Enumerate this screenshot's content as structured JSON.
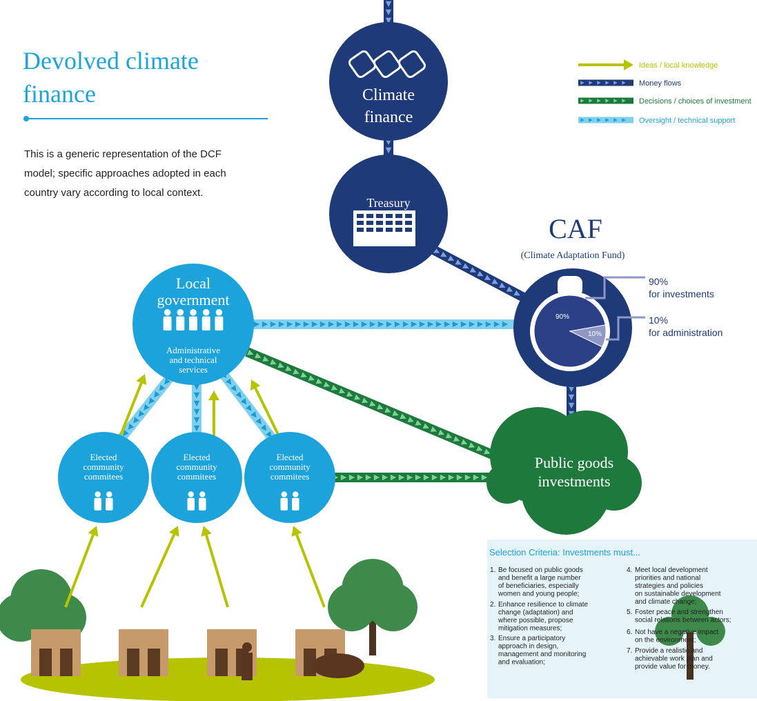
{
  "title_lines": [
    "Devolved climate",
    "finance"
  ],
  "intro_lines": [
    "This is a generic representation of the DCF",
    "model; specific approaches adopted in each",
    "country vary according to local context."
  ],
  "legend": [
    {
      "label": "Ideas / local knowledge"
    },
    {
      "label": "Money flows"
    },
    {
      "label": "Decisions / choices of investment"
    },
    {
      "label": "Oversight / technical support"
    }
  ],
  "nodes": {
    "climate_finance": [
      "Climate",
      "finance"
    ],
    "treasury": "Treasury",
    "caf": {
      "title": "CAF",
      "subtitle": "(Climate Adaptation Fund)",
      "shares": [
        {
          "value": 90,
          "label": "90%",
          "caption": "for investments"
        },
        {
          "value": 10,
          "label": "10%",
          "caption": "for administration"
        }
      ]
    },
    "local_government": {
      "name": [
        "Local",
        "government"
      ],
      "services": [
        "Administrative",
        "and technical",
        "services"
      ]
    },
    "committees": [
      [
        "Elected",
        "community",
        "commitees"
      ],
      [
        "Elected",
        "community",
        "commitees"
      ],
      [
        "Elected",
        "community",
        "commitees"
      ]
    ],
    "public_goods": [
      "Public goods",
      "investments"
    ]
  },
  "criteria": {
    "title": "Selection Criteria: Investments must...",
    "items": [
      {
        "num": "1.",
        "lines": [
          "Be focused on public goods",
          "and benefit a large number",
          "of beneficiaries, especially",
          "women and young people;"
        ]
      },
      {
        "num": "2.",
        "lines": [
          "Enhance resilience to climate",
          "change (adaptation) and",
          "where possible, propose",
          "mitigation measures;"
        ]
      },
      {
        "num": "3.",
        "lines": [
          "Ensure a participatory",
          "approach in design,",
          "management and monitoring",
          "and evaluation;"
        ]
      },
      {
        "num": "4.",
        "lines": [
          "Meet local development",
          "priorities and national",
          "strategies and policies",
          "on sustainable development",
          "and climate change;"
        ]
      },
      {
        "num": "5.",
        "lines": [
          "Foster peace and strengthen",
          "social relations between actors;"
        ]
      },
      {
        "num": "6.",
        "lines": [
          "Not have a negative impact",
          "on the environment;"
        ]
      },
      {
        "num": "7.",
        "lines": [
          "Provide a realistic and",
          "achievable work plan and",
          "provide value for money."
        ]
      }
    ]
  }
}
